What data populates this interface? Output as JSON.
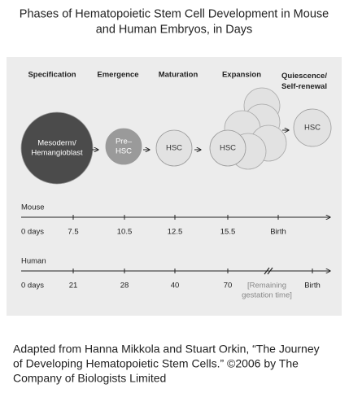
{
  "title": [
    "Phases of Hematopoietic Stem Cell Development in Mouse",
    "and Human Embryos, in Days"
  ],
  "phases": [
    [
      "Specification"
    ],
    [
      "Emergence"
    ],
    [
      "Maturation"
    ],
    [
      "Expansion"
    ],
    [
      "Quiescence/",
      "Self-renewal"
    ]
  ],
  "cells": [
    [
      "Mesoderm/",
      "Hemangioblast"
    ],
    [
      "Pre–",
      "HSC"
    ],
    [
      "HSC"
    ],
    [
      "HSC"
    ],
    [
      "HSC"
    ]
  ],
  "timelines": [
    {
      "label": "Mouse",
      "ticks": [
        [
          "0 days"
        ],
        [
          "7.5"
        ],
        [
          "10.5"
        ],
        [
          "12.5"
        ],
        [
          "15.5"
        ],
        [
          "Birth"
        ]
      ]
    },
    {
      "label": "Human",
      "ticks": [
        [
          "0 days"
        ],
        [
          "21"
        ],
        [
          "28"
        ],
        [
          "40"
        ],
        [
          "70"
        ],
        [
          "[Remaining",
          "gestation time]"
        ],
        [
          "Birth"
        ]
      ]
    }
  ],
  "caption": [
    "Adapted from Hanna Mikkola and Stuart Orkin, “The Journey",
    "of Developing Hematopoietic Stem Cells.” ©2006 by The",
    "Company of Biologists Limited"
  ]
}
